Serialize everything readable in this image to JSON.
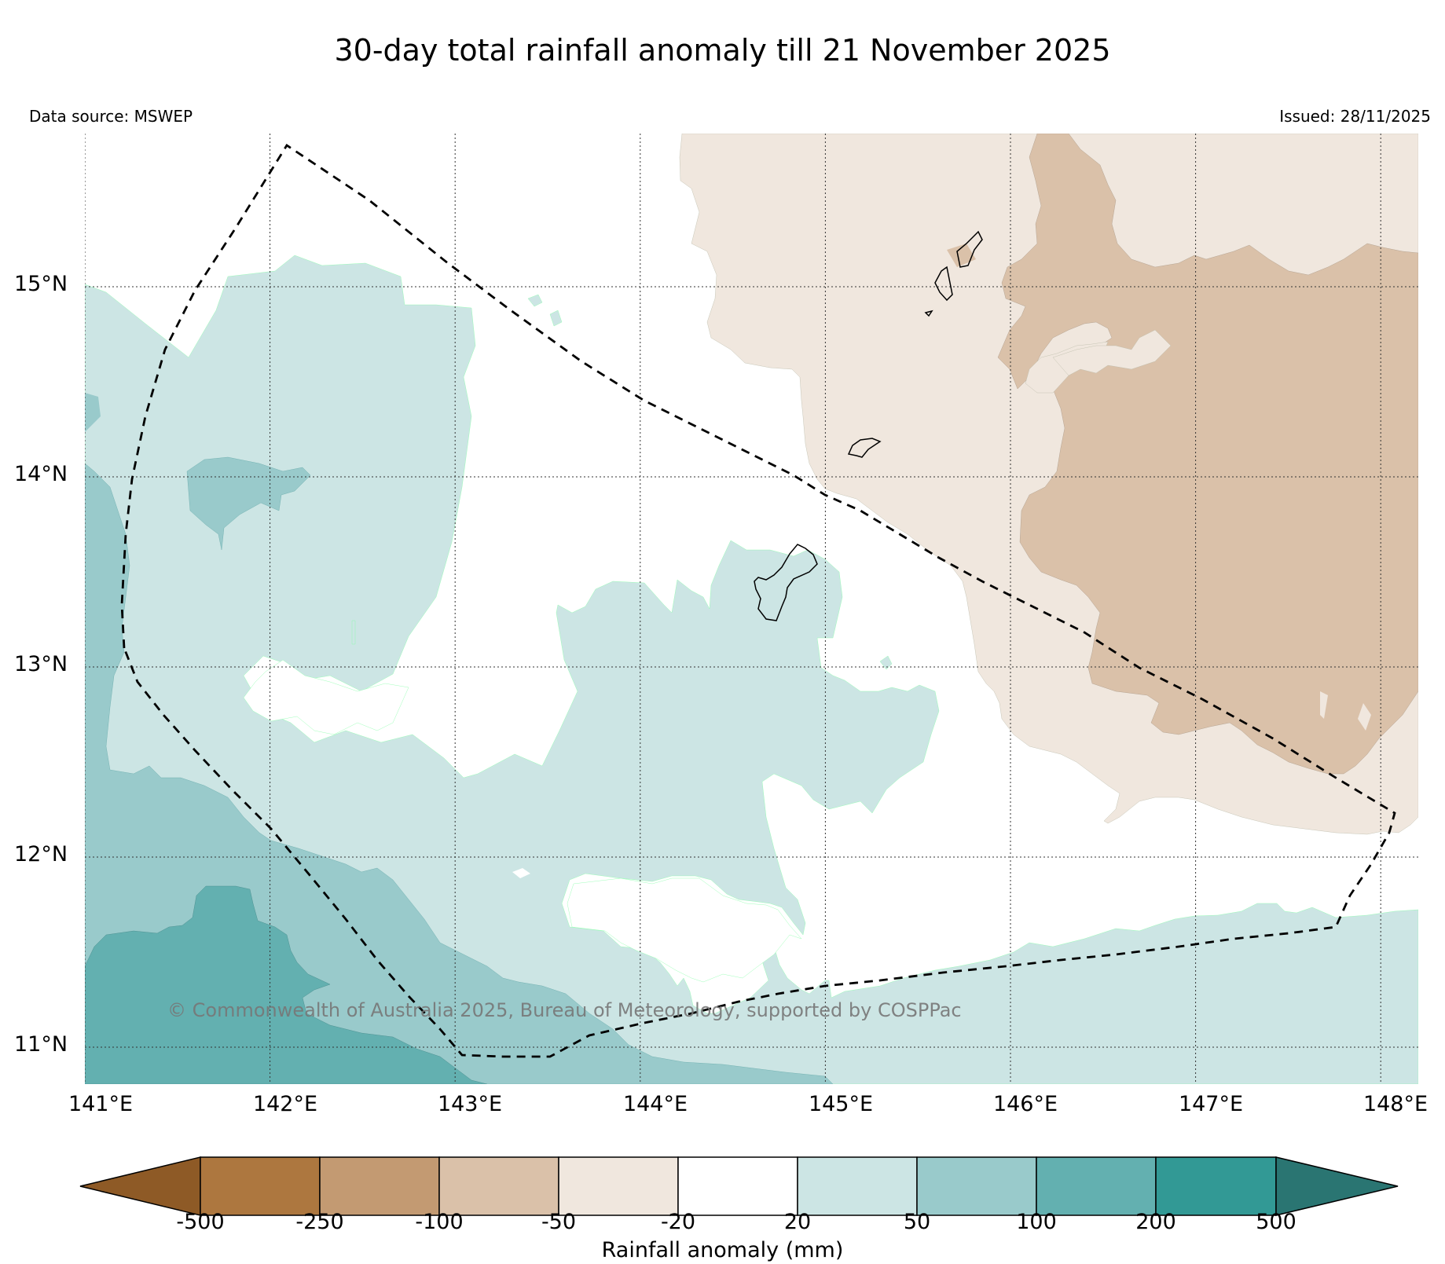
{
  "title": "30-day total rainfall anomaly till 21 November 2025",
  "data_source": "Data source: MSWEP",
  "issued": "Issued: 28/11/2025",
  "copyright": "© Commonwealth of Australia 2025, Bureau of Meteorology, supported by COSPPac",
  "lat_ticks": [
    "15°N",
    "14°N",
    "13°N",
    "12°N",
    "11°N"
  ],
  "lon_ticks": [
    "141°E",
    "142°E",
    "143°E",
    "144°E",
    "145°E",
    "146°E",
    "147°E",
    "148°E"
  ],
  "colorbar": {
    "title": "Rainfall anomaly (mm)",
    "tick_labels": [
      "-500",
      "-250",
      "-100",
      "-50",
      "-20",
      "20",
      "50",
      "100",
      "200",
      "500"
    ],
    "colors": [
      "#8e5a26",
      "#ad773f",
      "#c39a72",
      "#dac1a9",
      "#f0e7de",
      "#ffffff",
      "#cce5e4",
      "#99cacb",
      "#63b0b0",
      "#329995",
      "#2a7572"
    ]
  }
}
